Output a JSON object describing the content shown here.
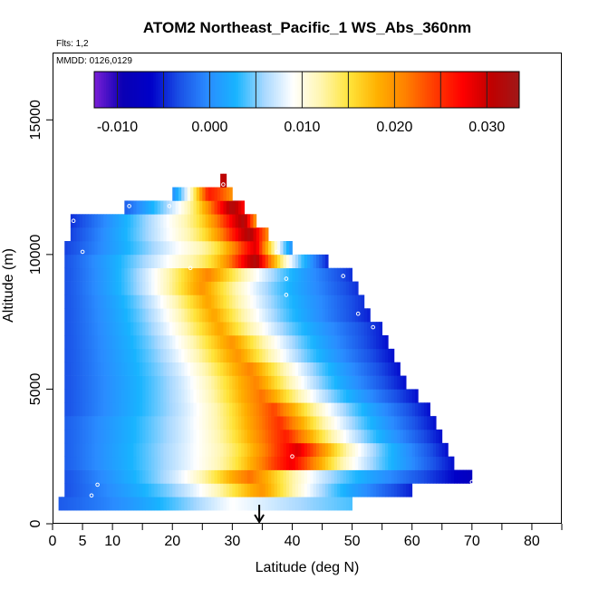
{
  "chart_data": {
    "type": "heatmap",
    "title": "ATOM2 Northeast_Pacific_1 WS_Abs_360nm",
    "flights_note": "Flts: 1,2",
    "dates_note": "MMDD: 0126,0129",
    "xlabel": "Latitude (deg N)",
    "ylabel": "Altitude (m)",
    "xlim": [
      0,
      85
    ],
    "ylim": [
      0,
      17500
    ],
    "x_ticks": [
      {
        "value": 0,
        "label": "0"
      },
      {
        "value": 5,
        "label": "5"
      },
      {
        "value": 10,
        "label": "10"
      },
      {
        "value": 20,
        "label": "20"
      },
      {
        "value": 30,
        "label": "30"
      },
      {
        "value": 40,
        "label": "40"
      },
      {
        "value": 50,
        "label": "50"
      },
      {
        "value": 60,
        "label": "60"
      },
      {
        "value": 70,
        "label": "70"
      },
      {
        "value": 80,
        "label": "80"
      }
    ],
    "x_minor_ticks": [
      15,
      25,
      35,
      45,
      55,
      65,
      75,
      85
    ],
    "y_ticks": [
      {
        "value": 0,
        "label": "0"
      },
      {
        "value": 5000,
        "label": "5000"
      },
      {
        "value": 10000,
        "label": "10000"
      },
      {
        "value": 15000,
        "label": "15000"
      }
    ],
    "colorbar": {
      "range": [
        -0.0125,
        0.0335
      ],
      "ticks": [
        {
          "value": -0.01,
          "label": "-0.010"
        },
        {
          "value": 0.0,
          "label": "0.000"
        },
        {
          "value": 0.01,
          "label": "0.010"
        },
        {
          "value": 0.02,
          "label": "0.020"
        },
        {
          "value": 0.03,
          "label": "0.030"
        }
      ],
      "bounds": [
        -0.01,
        -0.005,
        0.0,
        0.005,
        0.01,
        0.015,
        0.02,
        0.025,
        0.03
      ],
      "colors": [
        "#7b1fd6",
        "#0a00b4",
        "#0000c8",
        "#1a50e6",
        "#2a8cff",
        "#18b4ff",
        "#a8d8ff",
        "#ffffff",
        "#fff6b0",
        "#ffe43a",
        "#ffb000",
        "#ff8000",
        "#ff3c00",
        "#ff0000",
        "#c00000",
        "#a01818"
      ]
    },
    "profile_band_height_m": 500,
    "bands": [
      {
        "alt": 750,
        "lat_min": 1,
        "lat_max": 50,
        "v_left": -0.004,
        "v_peak": 0.009,
        "peak_lat": 30,
        "peak_width": 20,
        "v_right": 0.005
      },
      {
        "alt": 1250,
        "lat_min": 2,
        "lat_max": 60,
        "v_left": -0.005,
        "v_peak": 0.02,
        "peak_lat": 35,
        "peak_width": 10,
        "v_right": -0.008
      },
      {
        "alt": 1750,
        "lat_min": 2,
        "lat_max": 70,
        "v_left": -0.005,
        "v_peak": 0.022,
        "peak_lat": 33,
        "peak_width": 10,
        "v_right": -0.012
      },
      {
        "alt": 2250,
        "lat_min": 2,
        "lat_max": 67,
        "v_left": -0.004,
        "v_peak": 0.028,
        "peak_lat": 40,
        "peak_width": 9,
        "v_right": -0.009
      },
      {
        "alt": 2750,
        "lat_min": 2,
        "lat_max": 66,
        "v_left": -0.004,
        "v_peak": 0.029,
        "peak_lat": 41,
        "peak_width": 9,
        "v_right": -0.009
      },
      {
        "alt": 3250,
        "lat_min": 2,
        "lat_max": 65,
        "v_left": -0.004,
        "v_peak": 0.026,
        "peak_lat": 39,
        "peak_width": 10,
        "v_right": -0.009
      },
      {
        "alt": 3750,
        "lat_min": 2,
        "lat_max": 64,
        "v_left": -0.004,
        "v_peak": 0.025,
        "peak_lat": 38,
        "peak_width": 10,
        "v_right": -0.009
      },
      {
        "alt": 4250,
        "lat_min": 2,
        "lat_max": 63,
        "v_left": -0.005,
        "v_peak": 0.024,
        "peak_lat": 37,
        "peak_width": 10,
        "v_right": -0.009
      },
      {
        "alt": 4750,
        "lat_min": 2,
        "lat_max": 61,
        "v_left": -0.005,
        "v_peak": 0.022,
        "peak_lat": 35,
        "peak_width": 10,
        "v_right": -0.009
      },
      {
        "alt": 5250,
        "lat_min": 2,
        "lat_max": 59,
        "v_left": -0.005,
        "v_peak": 0.021,
        "peak_lat": 34,
        "peak_width": 10,
        "v_right": -0.009
      },
      {
        "alt": 5750,
        "lat_min": 2,
        "lat_max": 58,
        "v_left": -0.005,
        "v_peak": 0.021,
        "peak_lat": 33,
        "peak_width": 10,
        "v_right": -0.009
      },
      {
        "alt": 6250,
        "lat_min": 2,
        "lat_max": 57,
        "v_left": -0.005,
        "v_peak": 0.02,
        "peak_lat": 31,
        "peak_width": 10,
        "v_right": -0.009
      },
      {
        "alt": 6750,
        "lat_min": 2,
        "lat_max": 56,
        "v_left": -0.005,
        "v_peak": 0.02,
        "peak_lat": 30,
        "peak_width": 10,
        "v_right": -0.009
      },
      {
        "alt": 7250,
        "lat_min": 2,
        "lat_max": 55,
        "v_left": -0.005,
        "v_peak": 0.019,
        "peak_lat": 28,
        "peak_width": 10,
        "v_right": -0.008
      },
      {
        "alt": 7750,
        "lat_min": 2,
        "lat_max": 53,
        "v_left": -0.005,
        "v_peak": 0.019,
        "peak_lat": 27,
        "peak_width": 10,
        "v_right": -0.008
      },
      {
        "alt": 8250,
        "lat_min": 2,
        "lat_max": 52,
        "v_left": -0.005,
        "v_peak": 0.019,
        "peak_lat": 26,
        "peak_width": 10,
        "v_right": -0.007
      },
      {
        "alt": 8750,
        "lat_min": 2,
        "lat_max": 51,
        "v_left": -0.005,
        "v_peak": 0.02,
        "peak_lat": 25,
        "peak_width": 10,
        "v_right": -0.007
      },
      {
        "alt": 9250,
        "lat_min": 2,
        "lat_max": 50,
        "v_left": -0.005,
        "v_peak": 0.021,
        "peak_lat": 26,
        "peak_width": 12,
        "v_right": -0.007
      },
      {
        "alt": 9750,
        "lat_min": 2,
        "lat_max": 46,
        "v_left": -0.005,
        "v_peak": 0.032,
        "peak_lat": 34,
        "peak_width": 5,
        "v_right": -0.008
      },
      {
        "alt": 10250,
        "lat_min": 2,
        "lat_max": 40,
        "v_left": -0.006,
        "v_peak": 0.029,
        "peak_lat": 34,
        "peak_width": 5,
        "v_right": 0.0
      },
      {
        "alt": 10750,
        "lat_min": 3,
        "lat_max": 36,
        "v_left": -0.006,
        "v_peak": 0.032,
        "peak_lat": 33,
        "peak_width": 6,
        "v_right": 0.022
      },
      {
        "alt": 11250,
        "lat_min": 3,
        "lat_max": 34,
        "v_left": -0.007,
        "v_peak": 0.032,
        "peak_lat": 32,
        "peak_width": 6,
        "v_right": 0.02
      },
      {
        "alt": 11750,
        "lat_min": 12,
        "lat_max": 32,
        "v_left": -0.004,
        "v_peak": 0.032,
        "peak_lat": 30,
        "peak_width": 6,
        "v_right": 0.028
      },
      {
        "alt": 12250,
        "lat_min": 20,
        "lat_max": 30,
        "v_left": 0.0,
        "v_peak": 0.026,
        "peak_lat": 26,
        "peak_width": 5,
        "v_right": 0.024
      },
      {
        "alt": 12750,
        "lat_min": 28,
        "lat_max": 29,
        "v_left": 0.03,
        "v_peak": 0.032,
        "peak_lat": 28.5,
        "peak_width": 2,
        "v_right": 0.03
      }
    ],
    "samples": [
      {
        "lat": 12.8,
        "alt": 11800
      },
      {
        "lat": 19.5,
        "alt": 11800
      },
      {
        "lat": 3.5,
        "alt": 11250
      },
      {
        "lat": 5.0,
        "alt": 10100
      },
      {
        "lat": 28.5,
        "alt": 12600
      },
      {
        "lat": 37.5,
        "alt": 10100
      },
      {
        "lat": 23.0,
        "alt": 9500
      },
      {
        "lat": 39.0,
        "alt": 9100
      },
      {
        "lat": 48.5,
        "alt": 9200
      },
      {
        "lat": 39.0,
        "alt": 8500
      },
      {
        "lat": 51.0,
        "alt": 7800
      },
      {
        "lat": 53.5,
        "alt": 7300
      },
      {
        "lat": 40.0,
        "alt": 2500
      },
      {
        "lat": 70.0,
        "alt": 1550
      },
      {
        "lat": 7.5,
        "alt": 1450
      },
      {
        "lat": 6.5,
        "alt": 1050
      },
      {
        "lat": 40.5,
        "alt": 400
      }
    ],
    "marker": {
      "lat": 34.5,
      "symbol": "down-arrow"
    }
  }
}
